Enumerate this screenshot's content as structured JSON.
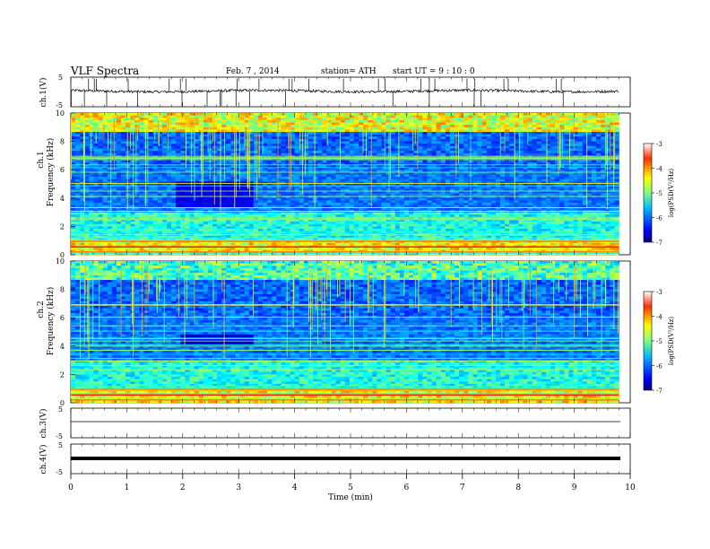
{
  "header": {
    "title": "VLF Spectra",
    "date": "Feb. 7 , 2014",
    "station": "station= ATH",
    "start": "start UT = 9 : 10 : 0"
  },
  "chart_data": [
    {
      "type": "line",
      "panel": "ch1",
      "ylabel": "ch.1(V)",
      "yticks": [
        "5",
        "-5"
      ],
      "ylim": [
        -5,
        5
      ],
      "description_level": 0.3,
      "xlim": [
        0,
        10
      ]
    },
    {
      "type": "heatmap",
      "panel": "spec1",
      "ylabel_channel": "ch.1",
      "ylabel": "Frequency (kHz)",
      "yticks": [
        "0",
        "2",
        "4",
        "6",
        "8",
        "10"
      ],
      "ylim": [
        0,
        10
      ],
      "xlim": [
        0,
        9.8
      ],
      "colorbar": {
        "label": "log(PSD(V²/Hz)",
        "ticks": [
          "-3",
          "-4",
          "-5",
          "-6",
          "-7"
        ],
        "range": [
          -7,
          -3
        ]
      }
    },
    {
      "type": "heatmap",
      "panel": "spec2",
      "ylabel_channel": "ch.2",
      "ylabel": "Frequency (kHz)",
      "yticks": [
        "0",
        "2",
        "4",
        "6",
        "8",
        "10"
      ],
      "ylim": [
        0,
        10
      ],
      "xlim": [
        0,
        9.8
      ],
      "colorbar": {
        "label": "log(PSD(V²/Hz)",
        "ticks": [
          "-3",
          "-4",
          "-5",
          "-6",
          "-7"
        ],
        "range": [
          -7,
          -3
        ]
      }
    },
    {
      "type": "line",
      "panel": "ch3",
      "ylabel": "ch.3(V)",
      "yticks": [
        "5",
        "-5"
      ],
      "ylim": [
        -5,
        5
      ],
      "level": 0
    },
    {
      "type": "line",
      "panel": "ch4",
      "ylabel": "ch.4(V)",
      "yticks": [
        "5",
        "-5"
      ],
      "ylim": [
        -5,
        5
      ],
      "level": 0
    }
  ],
  "xaxis": {
    "label": "Time (min)",
    "ticks": [
      "0",
      "1",
      "2",
      "3",
      "4",
      "5",
      "6",
      "7",
      "8",
      "9",
      "10"
    ],
    "xlim": [
      0,
      10
    ]
  },
  "colors": {
    "jet": [
      "#00007f",
      "#0000ff",
      "#007fff",
      "#00ffff",
      "#7fff7f",
      "#ffff00",
      "#ff7f00",
      "#ff0000",
      "#7f0000"
    ]
  }
}
